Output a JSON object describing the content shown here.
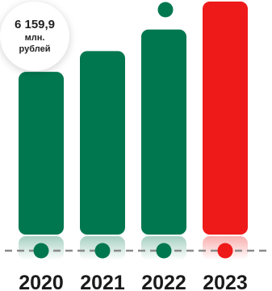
{
  "chart_data": {
    "type": "bar",
    "categories": [
      "2020",
      "2021",
      "2022",
      "2023"
    ],
    "values": [
      4300,
      4850,
      5420,
      6159.9
    ],
    "ylim": [
      0,
      6200
    ],
    "callout": {
      "value": "6 159,9",
      "unit_line1": "млн.",
      "unit_line2": "рублей"
    }
  },
  "colors": {
    "past_bar": "#00774f",
    "current_bar": "#ee1a1a",
    "marker_dot_past": "#00774f",
    "marker_dot_current": "#ee1a1a",
    "baseline_dash": "#8a8a8a",
    "year_label": "#1a1a1a"
  }
}
